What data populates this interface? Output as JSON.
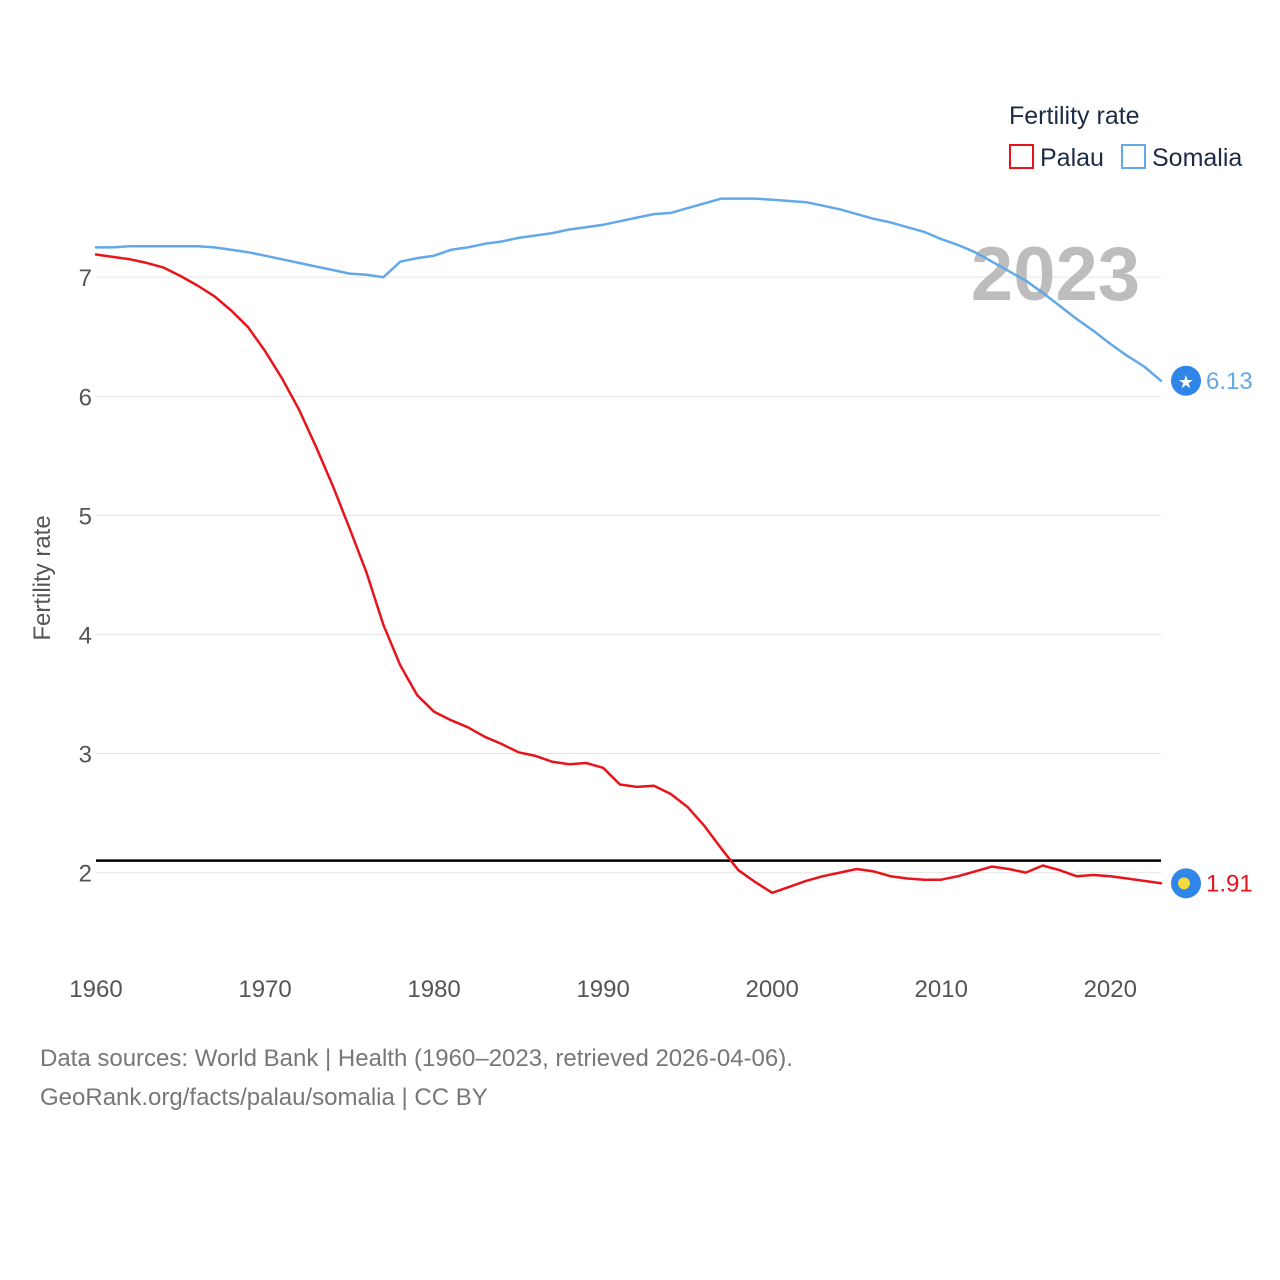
{
  "colors": {
    "palau": "#e8141c",
    "somalia": "#63a8e8",
    "marker_blue": "#2f86e8",
    "marker_yellow": "#f6d93a",
    "reference_line": "#000000",
    "grid": "#e6e6e6"
  },
  "chart_data": {
    "type": "line",
    "title": "",
    "xlabel": "",
    "ylabel": "Fertility rate",
    "xlim": [
      1960,
      2023
    ],
    "ylim": [
      1.35,
      7.9
    ],
    "x_ticks": [
      "1960",
      "1970",
      "1980",
      "1990",
      "2000",
      "2010",
      "2020"
    ],
    "y_ticks": [
      "2",
      "3",
      "4",
      "5",
      "6",
      "7"
    ],
    "reference_line": 2.1,
    "year_label": "2023",
    "legend_title": "Fertility rate",
    "x": [
      1960,
      1961,
      1962,
      1963,
      1964,
      1965,
      1966,
      1967,
      1968,
      1969,
      1970,
      1971,
      1972,
      1973,
      1974,
      1975,
      1976,
      1977,
      1978,
      1979,
      1980,
      1981,
      1982,
      1983,
      1984,
      1985,
      1986,
      1987,
      1988,
      1989,
      1990,
      1991,
      1992,
      1993,
      1994,
      1995,
      1996,
      1997,
      1998,
      1999,
      2000,
      2001,
      2002,
      2003,
      2004,
      2005,
      2006,
      2007,
      2008,
      2009,
      2010,
      2011,
      2012,
      2013,
      2014,
      2015,
      2016,
      2017,
      2018,
      2019,
      2020,
      2021,
      2022,
      2023
    ],
    "series": [
      {
        "name": "Palau",
        "color": "#e8141c",
        "marker": "yellow-dot",
        "end_label": "1.91",
        "values": [
          7.19,
          7.17,
          7.15,
          7.12,
          7.08,
          7.01,
          6.93,
          6.84,
          6.72,
          6.58,
          6.38,
          6.15,
          5.89,
          5.58,
          5.25,
          4.89,
          4.52,
          4.08,
          3.74,
          3.49,
          3.35,
          3.28,
          3.22,
          3.14,
          3.08,
          3.01,
          2.98,
          2.93,
          2.91,
          2.92,
          2.88,
          2.74,
          2.72,
          2.73,
          2.66,
          2.55,
          2.39,
          2.2,
          2.02,
          1.92,
          1.83,
          1.88,
          1.93,
          1.97,
          2.0,
          2.03,
          2.01,
          1.97,
          1.95,
          1.94,
          1.94,
          1.97,
          2.01,
          2.05,
          2.03,
          2.0,
          2.06,
          2.02,
          1.97,
          1.98,
          1.97,
          1.95,
          1.93,
          1.91
        ]
      },
      {
        "name": "Somalia",
        "color": "#63a8e8",
        "marker": "star",
        "end_label": "6.13",
        "values": [
          7.25,
          7.25,
          7.26,
          7.26,
          7.26,
          7.26,
          7.26,
          7.25,
          7.23,
          7.21,
          7.18,
          7.15,
          7.12,
          7.09,
          7.06,
          7.03,
          7.02,
          7.0,
          7.13,
          7.16,
          7.18,
          7.23,
          7.25,
          7.28,
          7.3,
          7.33,
          7.35,
          7.37,
          7.4,
          7.42,
          7.44,
          7.47,
          7.5,
          7.53,
          7.54,
          7.58,
          7.62,
          7.66,
          7.66,
          7.66,
          7.65,
          7.64,
          7.63,
          7.6,
          7.57,
          7.53,
          7.49,
          7.46,
          7.42,
          7.38,
          7.32,
          7.27,
          7.21,
          7.13,
          7.05,
          6.97,
          6.87,
          6.76,
          6.65,
          6.55,
          6.44,
          6.34,
          6.25,
          6.13
        ]
      }
    ]
  },
  "footer": {
    "sources": "Data sources: World Bank | Health (1960–2023, retrieved 2026-04-06).",
    "credit": "GeoRank.org/facts/palau/somalia | CC BY"
  }
}
